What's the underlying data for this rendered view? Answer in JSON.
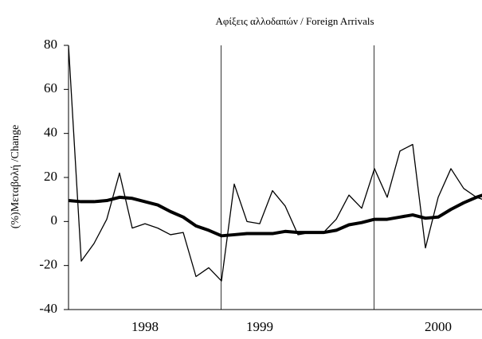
{
  "chart_data": {
    "type": "line",
    "title": "Αφίξεις αλλοδαπών / Foreign Arrivals",
    "y_label": "(%)Μεταβολή /Change",
    "categories": [
      null,
      null,
      null,
      null,
      null,
      null,
      "1998",
      null,
      null,
      null,
      null,
      null,
      null,
      null,
      null,
      "1999",
      null,
      null,
      null,
      null,
      null,
      null,
      null,
      null,
      null,
      null,
      null,
      null,
      null,
      "2000",
      null,
      null,
      null,
      null
    ],
    "series": [
      {
        "color": "#000000",
        "width": 1.3,
        "values": [
          80,
          -18,
          -10,
          1,
          22,
          -3,
          -1,
          -3,
          -6,
          -5,
          -25,
          -21,
          -27,
          17,
          0,
          -1,
          14,
          7,
          -6,
          -5,
          -5,
          1,
          12,
          6,
          24,
          11,
          32,
          35,
          -12,
          11,
          24,
          15,
          11,
          9
        ]
      },
      {
        "color": "#000000",
        "width": 4,
        "values": [
          9.5,
          9,
          9,
          9.5,
          11,
          10.5,
          9,
          7.5,
          4.5,
          2,
          -2,
          -4,
          -6.5,
          -6,
          -5.5,
          -5.5,
          -5.5,
          -4.5,
          -5,
          -5,
          -5,
          -4,
          -1.5,
          -0.5,
          1,
          1,
          2,
          3,
          1.5,
          2,
          5.5,
          8.5,
          11,
          13
        ]
      }
    ],
    "ylim": [
      -40,
      80
    ],
    "yticks": [
      -40,
      -20,
      0,
      20,
      40,
      60,
      80
    ]
  }
}
